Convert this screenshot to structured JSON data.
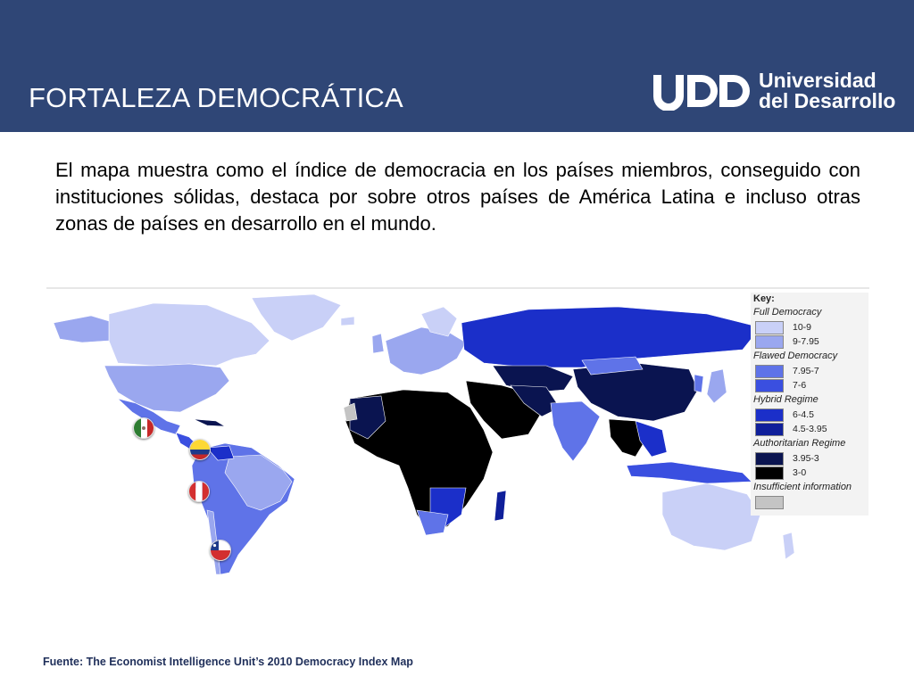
{
  "slide": {
    "title": "FORTALEZA DEMOCRÁTICA",
    "logo": {
      "line1": "Universidad",
      "line2": "del Desarrollo",
      "mark": "UDD"
    },
    "intro": "El mapa muestra como el índice de democracia en los países miembros, conseguido con instituciones sólidas, destaca por sobre otros países de América Latina e incluso otras zonas de países en desarrollo en el mundo.",
    "source": "Fuente: The Economist Intelligence Unit’s 2010 Democracy Index Map"
  },
  "map_key": {
    "title": "Key:",
    "groups": [
      {
        "label": "Full Democracy",
        "items": [
          {
            "range": "10-9",
            "color": "#c9d0f7"
          },
          {
            "range": "9-7.95",
            "color": "#9aa7ef"
          }
        ]
      },
      {
        "label": "Flawed Democracy",
        "items": [
          {
            "range": "7.95-7",
            "color": "#5f73e8"
          },
          {
            "range": "7-6",
            "color": "#3a4fe0"
          }
        ]
      },
      {
        "label": "Hybrid Regime",
        "items": [
          {
            "range": "6-4.5",
            "color": "#1b2fc9"
          },
          {
            "range": "4.5-3.95",
            "color": "#0f1f9a"
          }
        ]
      },
      {
        "label": "Authoritarian Regime",
        "items": [
          {
            "range": "3.95-3",
            "color": "#0a1450"
          },
          {
            "range": "3-0",
            "color": "#000000"
          }
        ]
      },
      {
        "label": "Insufficient information",
        "items": [
          {
            "range": "",
            "color": "#c4c4c4"
          }
        ]
      }
    ]
  },
  "flags": [
    {
      "country": "México",
      "icon": "mexico-flag-icon"
    },
    {
      "country": "Colombia",
      "icon": "colombia-flag-icon"
    },
    {
      "country": "Perú",
      "icon": "peru-flag-icon"
    },
    {
      "country": "Chile",
      "icon": "chile-flag-icon"
    }
  ]
}
